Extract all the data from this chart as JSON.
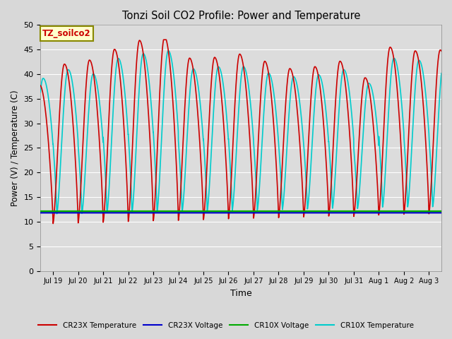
{
  "title": "Tonzi Soil CO2 Profile: Power and Temperature",
  "xlabel": "Time",
  "ylabel": "Power (V) / Temperature (C)",
  "ylim": [
    0,
    50
  ],
  "yticks": [
    0,
    5,
    10,
    15,
    20,
    25,
    30,
    35,
    40,
    45,
    50
  ],
  "annotation_text": "TZ_soilco2",
  "fig_bg_color": "#d8d8d8",
  "plot_bg_color": "#dcdcdc",
  "cr23x_temp_color": "#cc0000",
  "cr23x_volt_color": "#0000cc",
  "cr10x_volt_color": "#00aa00",
  "cr10x_temp_color": "#00cccc",
  "voltage_level_cr23x": 11.8,
  "voltage_level_cr10x": 12.1,
  "xtick_labels": [
    "Jul 19",
    "Jul 20",
    "Jul 21",
    "Jul 22",
    "Jul 23",
    "Jul 24",
    "Jul 25",
    "Jul 26",
    "Jul 27",
    "Jul 28",
    "Jul 29",
    "Jul 30",
    "Jul 31",
    "Aug 1",
    "Aug 2",
    "Aug 3"
  ],
  "legend_entries": [
    "CR23X Temperature",
    "CR23X Voltage",
    "CR10X Voltage",
    "CR10X Temperature"
  ],
  "legend_colors": [
    "#cc0000",
    "#0000cc",
    "#00aa00",
    "#00cccc"
  ],
  "grid_color": "#ffffff",
  "linewidth": 1.2
}
